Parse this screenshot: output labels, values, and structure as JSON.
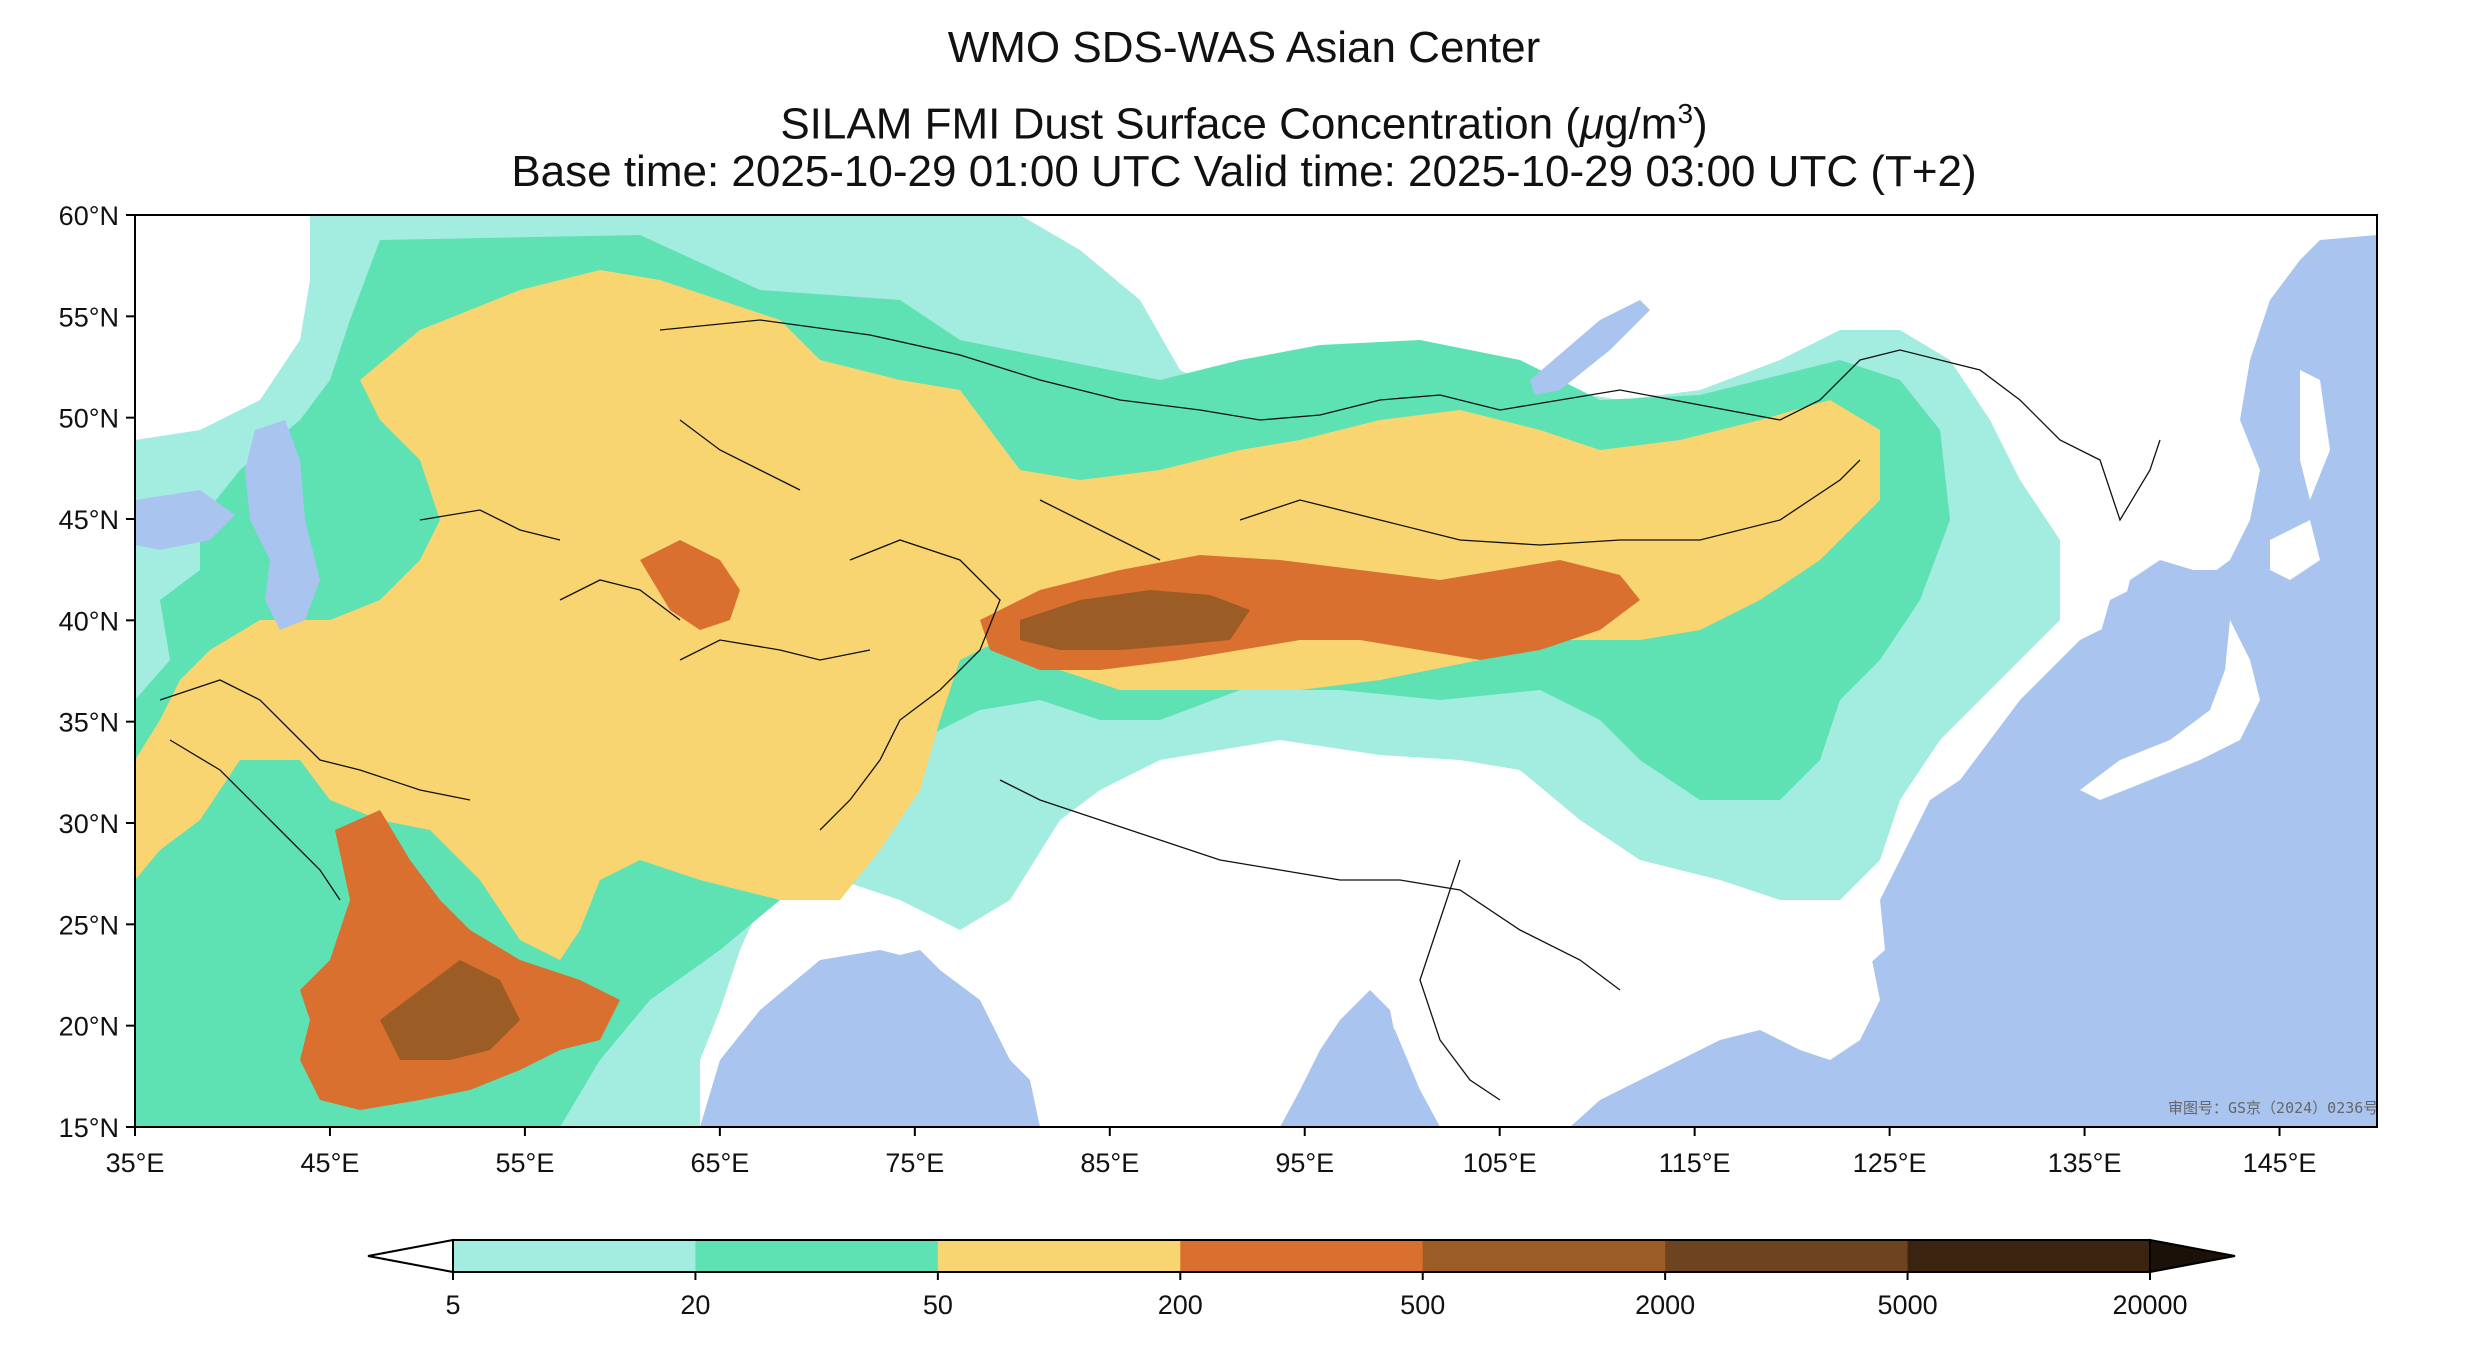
{
  "title": {
    "line1": "WMO SDS-WAS Asian Center",
    "line2_prefix": "SILAM FMI Dust Surface Concentration (",
    "line2_unit_mu": "μ",
    "line2_unit_rest": "g/m",
    "line2_unit_sup": "3",
    "line2_suffix": ")",
    "line3": "Base time: 2025-10-29 01:00 UTC Valid time: 2025-10-29 03:00 UTC (T+2)"
  },
  "map": {
    "lon_range": [
      35,
      150
    ],
    "lat_range": [
      15,
      60
    ],
    "lon_ticks": [
      "35°E",
      "45°E",
      "55°E",
      "65°E",
      "75°E",
      "85°E",
      "95°E",
      "105°E",
      "115°E",
      "125°E",
      "135°E",
      "145°E"
    ],
    "lat_ticks": [
      "60°N",
      "55°N",
      "50°N",
      "45°N",
      "40°N",
      "35°N",
      "30°N",
      "25°N",
      "20°N",
      "15°N"
    ],
    "approval_text": "审图号：GS京（2024）0236号",
    "colors": {
      "ocean": "#a9c4ee",
      "land": "#ffffff",
      "border": "#111111",
      "river": "#a9c4ee"
    }
  },
  "colorbar": {
    "ticks": [
      "5",
      "20",
      "50",
      "200",
      "500",
      "2000",
      "5000",
      "20000"
    ],
    "colors": [
      "#a3ece0",
      "#5ee2b4",
      "#f9d572",
      "#d9702f",
      "#9b5c25",
      "#6e4420",
      "#3a2410"
    ],
    "under_color": "#ffffff",
    "over_color": "#1c1108"
  }
}
